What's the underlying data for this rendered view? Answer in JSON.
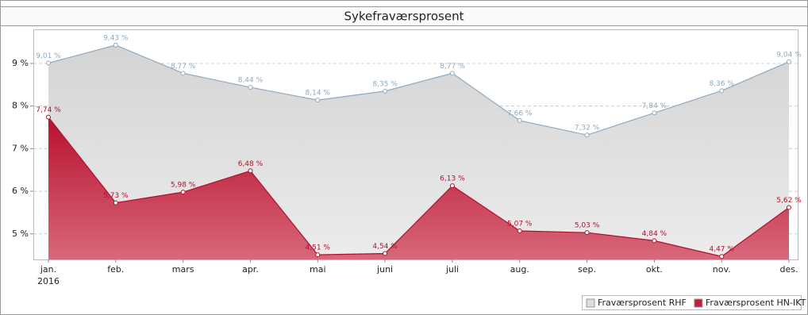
{
  "chart_data": {
    "type": "area",
    "title": "Sykefraværsprosent",
    "categories": [
      "jan.",
      "feb.",
      "mars",
      "apr.",
      "mai",
      "juni",
      "juli",
      "aug.",
      "sep.",
      "okt.",
      "nov.",
      "des."
    ],
    "x_sublabel": "2016",
    "series": [
      {
        "name": "Fraværsprosent RHF",
        "color": "#8ea9c1",
        "fill": "#dcdcdc",
        "values": [
          9.01,
          9.43,
          8.77,
          8.44,
          8.14,
          8.35,
          8.77,
          7.66,
          7.32,
          7.84,
          8.36,
          9.04
        ],
        "value_labels": [
          "9,01 %",
          "9,43 %",
          "8,77 %",
          "8,44 %",
          "8,14 %",
          "8,35 %",
          "8,77 %",
          "7,66 %",
          "7,32 %",
          "7,84 %",
          "8,36 %",
          "9,04 %"
        ]
      },
      {
        "name": "Fraværsprosent HN-IKT",
        "color": "#b0102e",
        "fill": "#c41e3a",
        "values": [
          7.74,
          5.73,
          5.98,
          6.48,
          4.51,
          4.54,
          6.13,
          5.07,
          5.03,
          4.84,
          4.47,
          5.62
        ],
        "value_labels": [
          "7,74 %",
          "5,73 %",
          "5,98 %",
          "6,48 %",
          "4,51 %",
          "4,54 %",
          "6,13 %",
          "5,07 %",
          "5,03 %",
          "4,84 %",
          "4,47 %",
          "5,62 %"
        ]
      }
    ],
    "ylim": [
      4.4,
      9.8
    ],
    "yticks": [
      {
        "value": 5,
        "label": "5 %"
      },
      {
        "value": 6,
        "label": "6 %"
      },
      {
        "value": 7,
        "label": "7 %"
      },
      {
        "value": 8,
        "label": "8 %"
      },
      {
        "value": 9,
        "label": "9 %"
      }
    ],
    "grid": true,
    "legend": "bottom-right"
  }
}
